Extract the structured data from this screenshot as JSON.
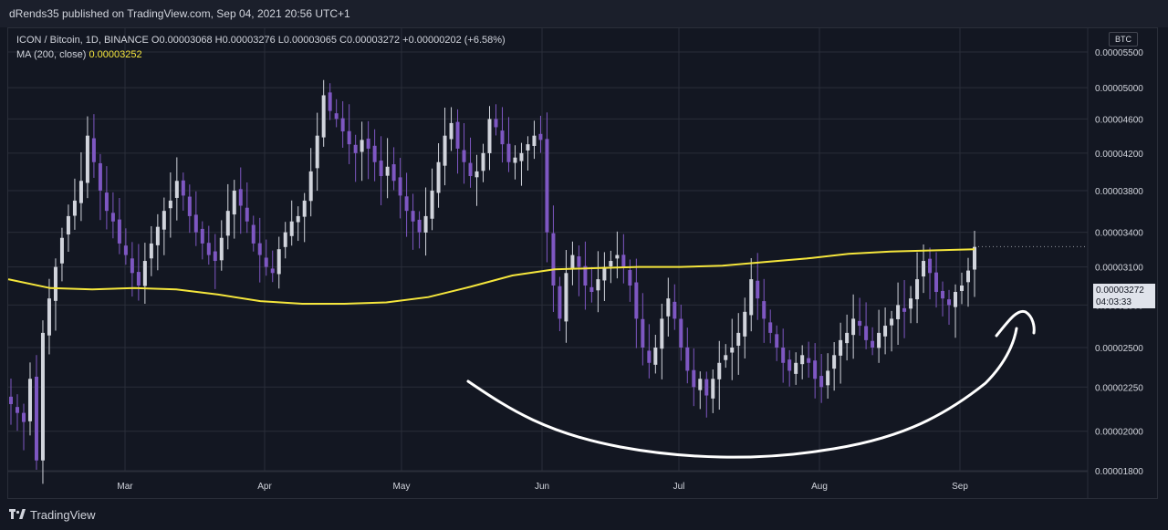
{
  "header": {
    "published": "dRends35 published on TradingView.com, Sep 04, 2021 20:56 UTC+1"
  },
  "legend": {
    "symbol_line": "ICON / Bitcoin, 1D, BINANCE  O0.00003068  H0.00003276  L0.00003065  C0.00003272  +0.00000202 (+6.58%)",
    "ma_label": "MA (200, close)",
    "ma_value": "0.00003252"
  },
  "currency_label": "BTC",
  "price_badge": {
    "price": "0.00003272",
    "countdown": "04:03:33"
  },
  "footer": {
    "brand": "TradingView"
  },
  "colors": {
    "background": "#131722",
    "up_candle": "#d1d4dc",
    "down_candle": "#7e57c2",
    "ma_line": "#f5e63c",
    "drawing": "#ffffff",
    "grid": "#2a2e39"
  },
  "chart_data": {
    "type": "candlestick",
    "y_ticks": [
      "0.00005500",
      "0.00005000",
      "0.00004600",
      "0.00004200",
      "0.00003800",
      "0.00003400",
      "0.00003100",
      "0.00002800",
      "0.00002500",
      "0.00002250",
      "0.00002000",
      "0.00001800"
    ],
    "y_tick_values": [
      5.5e-05,
      5e-05,
      4.6e-05,
      4.2e-05,
      3.8e-05,
      3.4e-05,
      3.1e-05,
      2.8e-05,
      2.5e-05,
      2.25e-05,
      2e-05,
      1.8e-05
    ],
    "x_ticks": [
      "Mar",
      "Apr",
      "May",
      "Jun",
      "Jul",
      "Aug",
      "Sep"
    ],
    "scale": "log",
    "last_price": 3.272e-05,
    "ohlc_last": {
      "open": 3.068e-05,
      "high": 3.276e-05,
      "low": 3.065e-05,
      "close": 3.272e-05
    },
    "series": [
      {
        "kind": "ohlc",
        "note": "daily closes approx",
        "closes": [
          2.15e-05,
          2.1e-05,
          2.05e-05,
          2.3e-05,
          1.85e-05,
          2.6e-05,
          2.85e-05,
          3.1e-05,
          3.35e-05,
          3.55e-05,
          3.7e-05,
          3.9e-05,
          4.4e-05,
          4.1e-05,
          3.8e-05,
          3.6e-05,
          3.5e-05,
          3.3e-05,
          3.2e-05,
          3.05e-05,
          2.95e-05,
          3.15e-05,
          3.3e-05,
          3.45e-05,
          3.6e-05,
          3.7e-05,
          3.9e-05,
          3.75e-05,
          3.55e-05,
          3.4e-05,
          3.3e-05,
          3.2e-05,
          3.15e-05,
          3.35e-05,
          3.6e-05,
          3.8e-05,
          3.65e-05,
          3.5e-05,
          3.3e-05,
          3.2e-05,
          3.1e-05,
          3.05e-05,
          3.25e-05,
          3.4e-05,
          3.5e-05,
          3.55e-05,
          3.7e-05,
          4e-05,
          4.4e-05,
          4.9e-05,
          4.7e-05,
          4.6e-05,
          4.45e-05,
          4.3e-05,
          4.2e-05,
          4.35e-05,
          4.25e-05,
          4.1e-05,
          3.95e-05,
          4.05e-05,
          3.9e-05,
          3.75e-05,
          3.6e-05,
          3.5e-05,
          3.4e-05,
          3.55e-05,
          3.8e-05,
          4.1e-05,
          4.4e-05,
          4.55e-05,
          4.25e-05,
          4.1e-05,
          3.95e-05,
          4e-05,
          4.2e-05,
          4.6e-05,
          4.5e-05,
          4.3e-05,
          4.1e-05,
          4.15e-05,
          4.2e-05,
          4.3e-05,
          4.4e-05,
          4.35e-05,
          3.4e-05,
          2.95e-05,
          2.7e-05,
          3.05e-05,
          3.2e-05,
          3.1e-05,
          2.95e-05,
          2.9e-05,
          3e-05,
          3.1e-05,
          3.15e-05,
          3.2e-05,
          3.1e-05,
          2.95e-05,
          2.7e-05,
          2.5e-05,
          2.4e-05,
          2.5e-05,
          2.7e-05,
          2.85e-05,
          2.7e-05,
          2.5e-05,
          2.35e-05,
          2.25e-05,
          2.3e-05,
          2.2e-05,
          2.3e-05,
          2.4e-05,
          2.45e-05,
          2.5e-05,
          2.6e-05,
          2.75e-05,
          3e-05,
          2.85e-05,
          2.7e-05,
          2.6e-05,
          2.5e-05,
          2.4e-05,
          2.35e-05,
          2.4e-05,
          2.45e-05,
          2.4e-05,
          2.3e-05,
          2.25e-05,
          2.35e-05,
          2.45e-05,
          2.55e-05,
          2.6e-05,
          2.7e-05,
          2.65e-05,
          2.55e-05,
          2.5e-05,
          2.6e-05,
          2.65e-05,
          2.7e-05,
          2.8e-05,
          2.75e-05,
          2.85e-05,
          3e-05,
          3.15e-05,
          3.05e-05,
          2.9e-05,
          2.85e-05,
          2.8e-05,
          2.9e-05,
          2.95e-05,
          3.07e-05,
          3.27e-05
        ]
      },
      {
        "kind": "line",
        "name": "MA (200, close)",
        "values": [
          3e-05,
          2.93e-05,
          2.92e-05,
          2.93e-05,
          2.92e-05,
          2.88e-05,
          2.83e-05,
          2.81e-05,
          2.81e-05,
          2.82e-05,
          2.86e-05,
          2.94e-05,
          3.03e-05,
          3.08e-05,
          3.09e-05,
          3.1e-05,
          3.1e-05,
          3.11e-05,
          3.14e-05,
          3.17e-05,
          3.21e-05,
          3.23e-05,
          3.24e-05,
          3.25e-05
        ]
      }
    ]
  }
}
